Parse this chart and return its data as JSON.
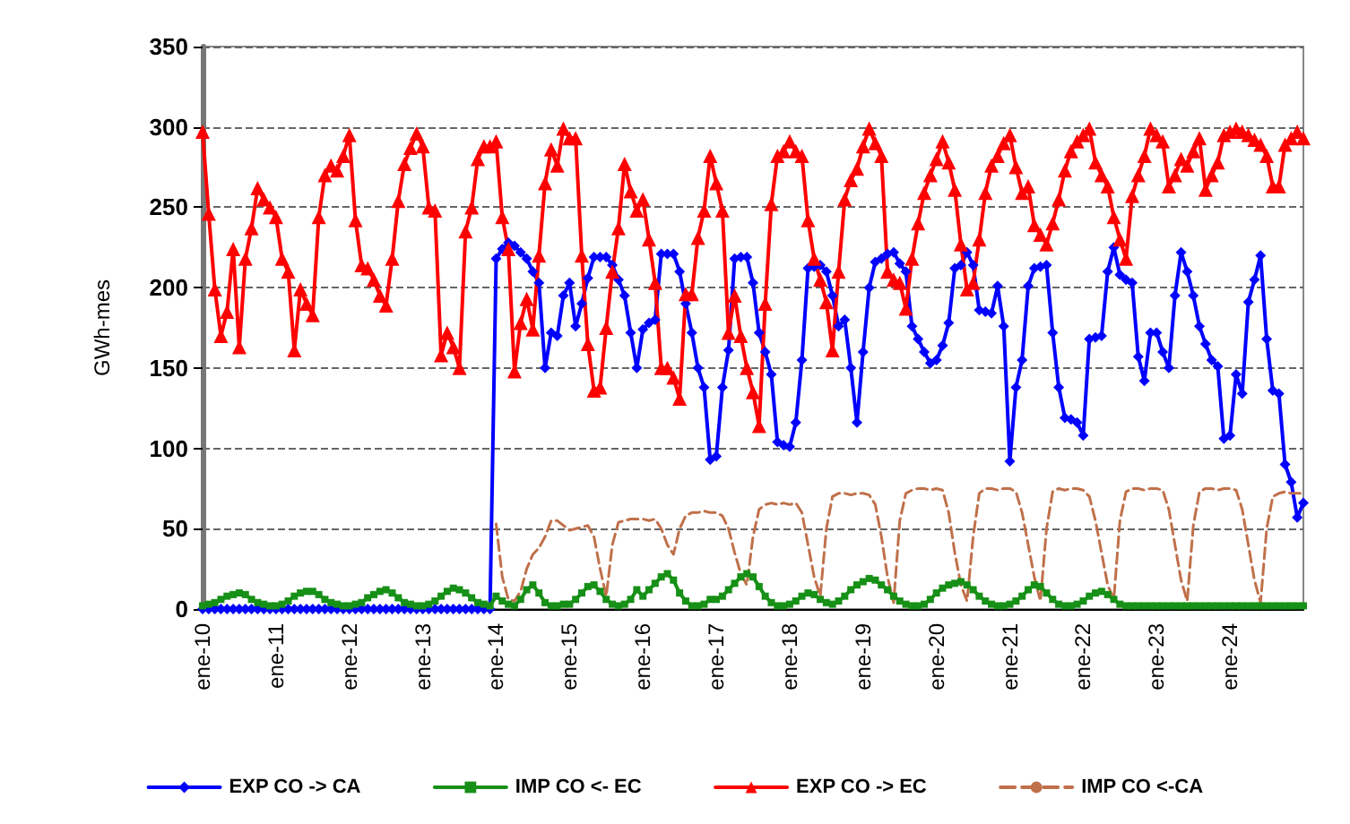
{
  "chart_data": {
    "type": "line",
    "ylabel": "GWh-mes",
    "categories": [
      "ene-10",
      null,
      null,
      null,
      null,
      null,
      null,
      null,
      null,
      null,
      null,
      null,
      "ene-11",
      null,
      null,
      null,
      null,
      null,
      null,
      null,
      null,
      null,
      null,
      null,
      "ene-12",
      null,
      null,
      null,
      null,
      null,
      null,
      null,
      null,
      null,
      null,
      null,
      "ene-13",
      null,
      null,
      null,
      null,
      null,
      null,
      null,
      null,
      null,
      null,
      null,
      "ene-14",
      null,
      null,
      null,
      null,
      null,
      null,
      null,
      null,
      null,
      null,
      null,
      "ene-15",
      null,
      null,
      null,
      null,
      null,
      null,
      null,
      null,
      null,
      null,
      null,
      "ene-16",
      null,
      null,
      null,
      null,
      null,
      null,
      null,
      null,
      null,
      null,
      null,
      "ene-17",
      null,
      null,
      null,
      null,
      null,
      null,
      null,
      null,
      null,
      null,
      null,
      "ene-18",
      null,
      null,
      null,
      null,
      null,
      null,
      null,
      null,
      null,
      null,
      null,
      "ene-19",
      null,
      null,
      null,
      null,
      null,
      null,
      null,
      null,
      null,
      null,
      null,
      "ene-20",
      null,
      null,
      null,
      null,
      null,
      null,
      null,
      null,
      null,
      null,
      null,
      "ene-21",
      null,
      null,
      null,
      null,
      null,
      null,
      null,
      null,
      null,
      null,
      null,
      "ene-22",
      null,
      null,
      null,
      null,
      null,
      null,
      null,
      null,
      null,
      null,
      null,
      "ene-23",
      null,
      null,
      null,
      null,
      null,
      null,
      null,
      null,
      null,
      null,
      null,
      "ene-24",
      null,
      null,
      null,
      null,
      null,
      null,
      null,
      null,
      null,
      null,
      null,
      null
    ],
    "series": [
      {
        "name": "EXP CO -> CA",
        "color": "#0000ff",
        "marker": "diamond",
        "line_style": "solid",
        "values": [
          0,
          0,
          0,
          0,
          0,
          0,
          0,
          0,
          0,
          0,
          0,
          0,
          0,
          0,
          0,
          0,
          0,
          0,
          0,
          0,
          0,
          0,
          0,
          0,
          0,
          0,
          0,
          0,
          0,
          0,
          0,
          0,
          0,
          0,
          0,
          0,
          0,
          0,
          0,
          0,
          0,
          0,
          0,
          0,
          0,
          0,
          0,
          0,
          218,
          224,
          228,
          226,
          222,
          218,
          210,
          203,
          150,
          172,
          170,
          195,
          203,
          176,
          190,
          206,
          219,
          219,
          219,
          214,
          205,
          195,
          172,
          150,
          174,
          178,
          180,
          221,
          221,
          221,
          210,
          190,
          172,
          150,
          138,
          93,
          95,
          138,
          161,
          218,
          219,
          219,
          203,
          172,
          160,
          146,
          104,
          102,
          101,
          116,
          155,
          212,
          213,
          214,
          210,
          195,
          176,
          180,
          150,
          116,
          160,
          200,
          216,
          218,
          221,
          222,
          215,
          210,
          176,
          168,
          160,
          153,
          155,
          164,
          178,
          212,
          214,
          222,
          214,
          186,
          185,
          184,
          201,
          176,
          92,
          138,
          155,
          201,
          212,
          213,
          214,
          172,
          138,
          119,
          118,
          116,
          108,
          168,
          169,
          170,
          210,
          225,
          208,
          205,
          203,
          157,
          142,
          172,
          172,
          160,
          150,
          195,
          222,
          210,
          195,
          176,
          165,
          155,
          151,
          106,
          108,
          146,
          134,
          191,
          205,
          220,
          168,
          136,
          134,
          90,
          79,
          57,
          66
        ]
      },
      {
        "name": "IMP CO <- EC",
        "color": "#169016",
        "marker": "square",
        "line_style": "solid",
        "values": [
          2,
          3,
          4,
          6,
          8,
          9,
          10,
          9,
          6,
          4,
          3,
          2,
          2,
          3,
          5,
          8,
          10,
          11,
          11,
          9,
          6,
          4,
          3,
          2,
          2,
          3,
          4,
          7,
          9,
          11,
          12,
          10,
          7,
          4,
          3,
          2,
          2,
          3,
          5,
          8,
          11,
          13,
          12,
          10,
          7,
          4,
          3,
          2,
          8,
          5,
          3,
          2,
          6,
          12,
          15,
          10,
          4,
          2,
          2,
          3,
          3,
          6,
          10,
          14,
          15,
          11,
          6,
          3,
          2,
          3,
          6,
          12,
          8,
          12,
          16,
          20,
          22,
          18,
          10,
          5,
          2,
          2,
          3,
          6,
          6,
          8,
          12,
          16,
          20,
          22,
          20,
          14,
          8,
          4,
          2,
          2,
          3,
          5,
          8,
          10,
          9,
          6,
          4,
          3,
          5,
          8,
          12,
          15,
          17,
          19,
          18,
          15,
          12,
          8,
          5,
          3,
          2,
          2,
          3,
          6,
          10,
          13,
          15,
          16,
          17,
          15,
          12,
          8,
          5,
          3,
          2,
          2,
          3,
          5,
          8,
          12,
          15,
          14,
          10,
          6,
          3,
          2,
          2,
          3,
          5,
          8,
          10,
          11,
          9,
          6,
          3,
          2,
          2,
          2,
          2,
          2,
          2,
          2,
          2,
          2,
          2,
          2,
          2,
          2,
          2,
          2,
          2,
          2,
          2,
          2,
          2,
          2,
          2,
          2,
          2,
          2,
          2,
          2,
          2,
          2,
          2
        ]
      },
      {
        "name": "EXP CO -> EC",
        "color": "#ff0000",
        "marker": "triangle",
        "line_style": "solid",
        "values": [
          297,
          246,
          199,
          170,
          185,
          224,
          163,
          218,
          237,
          262,
          255,
          250,
          244,
          218,
          210,
          161,
          199,
          190,
          183,
          244,
          270,
          276,
          273,
          282,
          295,
          242,
          214,
          212,
          205,
          195,
          189,
          218,
          254,
          277,
          287,
          296,
          288,
          250,
          248,
          158,
          172,
          163,
          150,
          235,
          250,
          280,
          288,
          288,
          291,
          244,
          224,
          148,
          178,
          193,
          174,
          220,
          265,
          286,
          276,
          299,
          293,
          293,
          220,
          165,
          136,
          138,
          175,
          210,
          237,
          277,
          260,
          248,
          255,
          230,
          203,
          150,
          150,
          144,
          131,
          196,
          196,
          231,
          248,
          282,
          265,
          248,
          172,
          195,
          170,
          150,
          135,
          114,
          190,
          252,
          282,
          285,
          291,
          285,
          282,
          242,
          218,
          205,
          191,
          161,
          210,
          255,
          267,
          274,
          288,
          299,
          290,
          282,
          210,
          205,
          203,
          187,
          218,
          240,
          259,
          270,
          280,
          291,
          278,
          261,
          227,
          199,
          203,
          230,
          259,
          276,
          282,
          290,
          295,
          275,
          259,
          263,
          239,
          233,
          227,
          240,
          255,
          273,
          285,
          291,
          295,
          299,
          278,
          270,
          263,
          244,
          230,
          218,
          257,
          270,
          282,
          299,
          295,
          291,
          263,
          270,
          280,
          276,
          285,
          293,
          261,
          270,
          278,
          295,
          297,
          299,
          297,
          295,
          292,
          289,
          282,
          263,
          263,
          289,
          293,
          297,
          293
        ]
      },
      {
        "name": "IMP CO <-CA",
        "color": "#c0704a",
        "marker": "none",
        "line_style": "dashed",
        "values": [
          null,
          null,
          null,
          null,
          null,
          null,
          null,
          null,
          null,
          null,
          null,
          null,
          null,
          null,
          null,
          null,
          null,
          null,
          null,
          null,
          null,
          null,
          null,
          null,
          null,
          null,
          null,
          null,
          null,
          null,
          null,
          null,
          null,
          null,
          null,
          null,
          null,
          null,
          null,
          null,
          null,
          null,
          null,
          null,
          null,
          null,
          null,
          null,
          53,
          20,
          6,
          5,
          11,
          25,
          34,
          38,
          45,
          55,
          55,
          52,
          49,
          50,
          51,
          52,
          45,
          25,
          8,
          40,
          54,
          55,
          56,
          56,
          56,
          55,
          56,
          50,
          40,
          34,
          50,
          58,
          60,
          60,
          61,
          60,
          60,
          58,
          50,
          35,
          22,
          15,
          45,
          62,
          65,
          66,
          65,
          66,
          65,
          66,
          60,
          40,
          20,
          8,
          50,
          70,
          72,
          72,
          71,
          72,
          72,
          71,
          65,
          45,
          20,
          4,
          55,
          72,
          74,
          75,
          75,
          74,
          75,
          74,
          60,
          35,
          15,
          5,
          45,
          72,
          75,
          75,
          74,
          75,
          75,
          73,
          60,
          40,
          20,
          5,
          50,
          73,
          75,
          74,
          75,
          75,
          74,
          70,
          55,
          35,
          15,
          6,
          55,
          73,
          75,
          75,
          74,
          75,
          75,
          74,
          62,
          40,
          18,
          5,
          52,
          73,
          75,
          75,
          74,
          75,
          75,
          74,
          62,
          40,
          18,
          4,
          50,
          70,
          72,
          73,
          72,
          72,
          72
        ]
      }
    ],
    "ylim": [
      0,
      350
    ],
    "yticks": [
      0,
      50,
      100,
      150,
      200,
      250,
      300,
      350
    ],
    "grid": "y",
    "legend": "bottom"
  }
}
